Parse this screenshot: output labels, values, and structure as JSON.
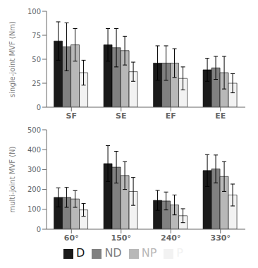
{
  "chart_data": [
    {
      "type": "bar",
      "categories": [
        "SF",
        "SE",
        "EF",
        "EE"
      ],
      "y_label": "single-joint MVF (Nm)",
      "ylim": [
        0,
        100
      ],
      "yticks": [
        0,
        25,
        50,
        75,
        100
      ],
      "grid": false,
      "series": [
        {
          "name": "D",
          "color": "#1a1a1a",
          "values": [
            69,
            65,
            46,
            39
          ],
          "errors": [
            20,
            17,
            18,
            12
          ]
        },
        {
          "name": "ND",
          "color": "#808080",
          "values": [
            63,
            62,
            46,
            41
          ],
          "errors": [
            25,
            20,
            18,
            12
          ]
        },
        {
          "name": "NP",
          "color": "#b8b8b8",
          "values": [
            65,
            59,
            46,
            36
          ],
          "errors": [
            17,
            15,
            15,
            17
          ]
        },
        {
          "name": "P",
          "color": "#f2f2f2",
          "values": [
            36,
            37,
            30,
            25
          ],
          "errors": [
            13,
            10,
            12,
            10
          ]
        }
      ]
    },
    {
      "type": "bar",
      "categories": [
        "60°",
        "150°",
        "240°",
        "330°"
      ],
      "y_label": "multi-joint MVF (N)",
      "ylim": [
        0,
        500
      ],
      "yticks": [
        0,
        100,
        200,
        300,
        400,
        500
      ],
      "grid": false,
      "legend": "bottom",
      "series": [
        {
          "name": "D",
          "color": "#1a1a1a",
          "values": [
            160,
            330,
            145,
            295
          ],
          "errors": [
            48,
            90,
            50,
            80
          ]
        },
        {
          "name": "ND",
          "color": "#808080",
          "values": [
            160,
            312,
            142,
            303
          ],
          "errors": [
            50,
            80,
            45,
            70
          ]
        },
        {
          "name": "NP",
          "color": "#b8b8b8",
          "values": [
            152,
            270,
            122,
            265
          ],
          "errors": [
            42,
            70,
            50,
            75
          ]
        },
        {
          "name": "P",
          "color": "#f2f2f2",
          "values": [
            97,
            190,
            68,
            172
          ],
          "errors": [
            32,
            70,
            35,
            55
          ]
        }
      ]
    }
  ]
}
